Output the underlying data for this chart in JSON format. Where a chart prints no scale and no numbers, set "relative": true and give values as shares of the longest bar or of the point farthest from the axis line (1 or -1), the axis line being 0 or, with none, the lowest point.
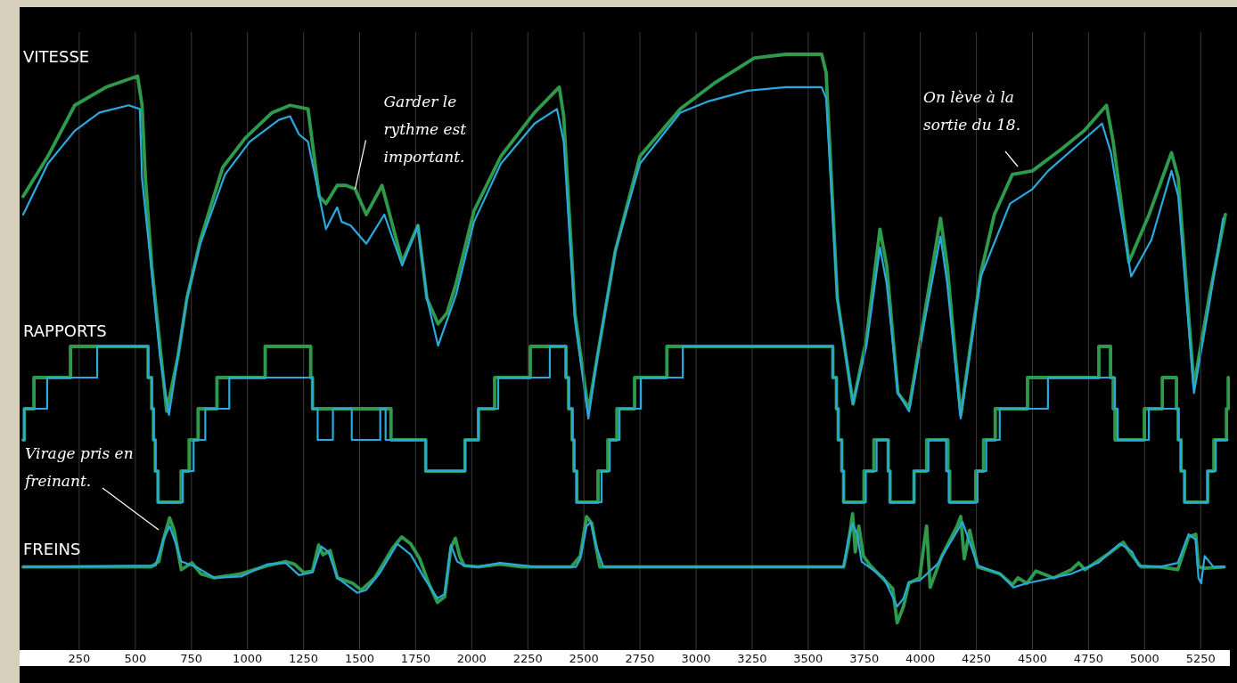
{
  "chart_data": [
    {
      "type": "line",
      "title": "VITESSE",
      "relative": true,
      "xlim": [
        0,
        5400
      ],
      "xticks": [
        250,
        500,
        750,
        1000,
        1250,
        1500,
        1750,
        2000,
        2250,
        2500,
        2750,
        3000,
        3250,
        3500,
        3750,
        4000,
        4250,
        4500,
        4750,
        5000,
        5250
      ],
      "grid": "x",
      "tick_labels": false,
      "annotations": [
        {
          "text": "Garder le rythme est important.",
          "x": 1480,
          "y": 0.63
        },
        "On lève à la sortie du 18."
      ],
      "series": [
        {
          "color": "#2e9a4c",
          "x": [
            0,
            110,
            230,
            370,
            510,
            530,
            545,
            573,
            640,
            690,
            730,
            790,
            890,
            990,
            1110,
            1190,
            1270,
            1320,
            1350,
            1400,
            1440,
            1480,
            1530,
            1600,
            1630,
            1690,
            1760,
            1800,
            1850,
            1890,
            1930,
            2010,
            2130,
            2280,
            2390,
            2410,
            2460,
            2520,
            2560,
            2640,
            2750,
            2930,
            3080,
            3260,
            3400,
            3560,
            3580,
            3630,
            3700,
            3760,
            3820,
            3850,
            3900,
            3950,
            4020,
            4090,
            4120,
            4180,
            4270,
            4330,
            4410,
            4500,
            4630,
            4730,
            4830,
            4860,
            4930,
            5020,
            5120,
            5150,
            5220,
            5290,
            5360
          ],
          "values": [
            0.61,
            0.72,
            0.86,
            0.91,
            0.94,
            0.86,
            0.66,
            0.42,
            0.02,
            0.17,
            0.33,
            0.49,
            0.69,
            0.77,
            0.84,
            0.86,
            0.85,
            0.61,
            0.59,
            0.64,
            0.64,
            0.63,
            0.56,
            0.64,
            0.57,
            0.43,
            0.53,
            0.33,
            0.26,
            0.29,
            0.37,
            0.57,
            0.72,
            0.84,
            0.91,
            0.83,
            0.29,
            0.02,
            0.17,
            0.46,
            0.72,
            0.85,
            0.92,
            0.99,
            1.0,
            1.0,
            0.95,
            0.33,
            0.04,
            0.22,
            0.52,
            0.42,
            0.07,
            0.03,
            0.29,
            0.55,
            0.42,
            0.01,
            0.4,
            0.56,
            0.67,
            0.68,
            0.74,
            0.79,
            0.86,
            0.76,
            0.43,
            0.56,
            0.73,
            0.66,
            0.09,
            0.34,
            0.56
          ]
        },
        {
          "color": "#2aa9dc",
          "x": [
            0,
            110,
            230,
            340,
            470,
            520,
            530,
            570,
            610,
            650,
            690,
            730,
            790,
            900,
            1010,
            1140,
            1190,
            1230,
            1270,
            1350,
            1400,
            1420,
            1460,
            1530,
            1610,
            1690,
            1760,
            1800,
            1850,
            1890,
            1930,
            2010,
            2130,
            2280,
            2380,
            2410,
            2460,
            2520,
            2560,
            2640,
            2750,
            2930,
            3050,
            3230,
            3400,
            3560,
            3580,
            3630,
            3700,
            3760,
            3820,
            3850,
            3900,
            3950,
            4020,
            4090,
            4120,
            4180,
            4270,
            4400,
            4500,
            4570,
            4810,
            4850,
            4940,
            5030,
            5120,
            5150,
            5220,
            5290,
            5350
          ],
          "values": [
            0.56,
            0.7,
            0.79,
            0.84,
            0.86,
            0.85,
            0.66,
            0.42,
            0.17,
            0.01,
            0.17,
            0.33,
            0.48,
            0.67,
            0.76,
            0.82,
            0.83,
            0.78,
            0.76,
            0.52,
            0.58,
            0.54,
            0.53,
            0.48,
            0.56,
            0.42,
            0.53,
            0.33,
            0.2,
            0.27,
            0.34,
            0.54,
            0.7,
            0.81,
            0.85,
            0.76,
            0.27,
            0.0,
            0.17,
            0.46,
            0.7,
            0.84,
            0.87,
            0.9,
            0.91,
            0.91,
            0.88,
            0.33,
            0.04,
            0.2,
            0.47,
            0.37,
            0.07,
            0.02,
            0.27,
            0.5,
            0.37,
            0.0,
            0.39,
            0.59,
            0.63,
            0.68,
            0.81,
            0.73,
            0.39,
            0.49,
            0.68,
            0.61,
            0.07,
            0.32,
            0.55
          ]
        }
      ]
    },
    {
      "type": "step",
      "title": "RAPPORTS",
      "relative": true,
      "xlim": [
        0,
        5400
      ],
      "xticks": [
        250,
        500,
        750,
        1000,
        1250,
        1500,
        1750,
        2000,
        2250,
        2500,
        2750,
        3000,
        3250,
        3500,
        3750,
        4000,
        4250,
        4500,
        4750,
        5000,
        5250
      ],
      "grid": "x",
      "tick_labels": false,
      "series": [
        {
          "color": "#2e9a4c",
          "x": [
            0,
            5,
            48,
            211,
            557,
            573,
            581,
            589,
            601,
            704,
            740,
            780,
            864,
            1079,
            1282,
            1290,
            1640,
            1795,
            1970,
            2030,
            2102,
            2261,
            2420,
            2432,
            2448,
            2456,
            2468,
            2563,
            2607,
            2647,
            2726,
            2870,
            3610,
            3626,
            3634,
            3650,
            3658,
            3749,
            3793,
            3857,
            3865,
            3972,
            4028,
            4123,
            4131,
            4247,
            4282,
            4334,
            4478,
            4796,
            4848,
            4860,
            4868,
            4999,
            5079,
            5142,
            5150,
            5162,
            5178,
            5281,
            5309,
            5365,
            5373
          ],
          "values": [
            0.4,
            0.6,
            0.8,
            1.0,
            0.8,
            0.6,
            0.4,
            0.2,
            0.0,
            0.2,
            0.4,
            0.6,
            0.8,
            1.0,
            0.8,
            0.6,
            0.4,
            0.2,
            0.4,
            0.6,
            0.8,
            1.0,
            0.8,
            0.6,
            0.4,
            0.2,
            0.0,
            0.2,
            0.4,
            0.6,
            0.8,
            1.0,
            0.8,
            0.6,
            0.4,
            0.2,
            0.0,
            0.2,
            0.4,
            0.2,
            0.0,
            0.2,
            0.4,
            0.2,
            0.0,
            0.2,
            0.4,
            0.6,
            0.8,
            1.0,
            0.8,
            0.6,
            0.4,
            0.6,
            0.8,
            0.6,
            0.4,
            0.2,
            0.0,
            0.2,
            0.4,
            0.6,
            0.8
          ]
        },
        {
          "color": "#2aa9dc",
          "x": [
            0,
            5,
            107,
            330,
            557,
            573,
            581,
            589,
            601,
            712,
            760,
            812,
            919,
            1290,
            1313,
            1381,
            1465,
            1592,
            1616,
            1795,
            1970,
            2030,
            2118,
            2348,
            2420,
            2432,
            2448,
            2456,
            2468,
            2579,
            2615,
            2659,
            2754,
            2941,
            3610,
            3626,
            3634,
            3650,
            3658,
            3757,
            3805,
            3857,
            3865,
            3972,
            4036,
            4115,
            4127,
            4255,
            4294,
            4354,
            4569,
            4868,
            4880,
            5019,
            5150,
            5162,
            5178,
            5281,
            5317,
            5370
          ],
          "values": [
            0.4,
            0.6,
            0.8,
            1.0,
            0.8,
            0.6,
            0.4,
            0.2,
            0.0,
            0.2,
            0.4,
            0.6,
            0.8,
            0.6,
            0.4,
            0.6,
            0.4,
            0.6,
            0.4,
            0.2,
            0.4,
            0.6,
            0.8,
            1.0,
            0.8,
            0.6,
            0.4,
            0.2,
            0.0,
            0.2,
            0.4,
            0.6,
            0.8,
            1.0,
            0.8,
            0.6,
            0.4,
            0.2,
            0.0,
            0.2,
            0.4,
            0.2,
            0.0,
            0.2,
            0.4,
            0.2,
            0.0,
            0.2,
            0.4,
            0.6,
            0.8,
            0.6,
            0.4,
            0.6,
            0.4,
            0.2,
            0.0,
            0.2,
            0.4,
            0.4
          ]
        }
      ]
    },
    {
      "type": "line",
      "title": "FREINS",
      "relative": true,
      "xlim": [
        0,
        5400
      ],
      "xticks": [
        250,
        500,
        750,
        1000,
        1250,
        1500,
        1750,
        2000,
        2250,
        2500,
        2750,
        3000,
        3250,
        3500,
        3750,
        4000,
        4250,
        4500,
        4750,
        5000,
        5250
      ],
      "grid": "x",
      "annotations": [
        "Virage pris en freinant."
      ],
      "series": [
        {
          "color": "#2e9a4c",
          "x": [
            0,
            570,
            605,
            625,
            653,
            673,
            693,
            705,
            752,
            792,
            852,
            971,
            1090,
            1170,
            1210,
            1250,
            1290,
            1317,
            1337,
            1369,
            1401,
            1469,
            1508,
            1568,
            1648,
            1688,
            1728,
            1768,
            1808,
            1847,
            1879,
            1907,
            1927,
            1946,
            1966,
            2026,
            2126,
            2225,
            2444,
            2484,
            2512,
            2535,
            2571,
            2603,
            3658,
            3678,
            3698,
            3710,
            3726,
            3746,
            3777,
            3877,
            3897,
            3925,
            3949,
            3997,
            4016,
            4028,
            4044,
            4096,
            4164,
            4180,
            4196,
            4220,
            4256,
            4355,
            4411,
            4435,
            4475,
            4515,
            4594,
            4674,
            4706,
            4734,
            4833,
            4905,
            4933,
            4984,
            5068,
            5148,
            5196,
            5228,
            5240,
            5268,
            5355
          ],
          "values": [
            0.61,
            0.61,
            0.65,
            0.81,
            0.97,
            0.88,
            0.7,
            0.59,
            0.64,
            0.56,
            0.53,
            0.56,
            0.62,
            0.65,
            0.63,
            0.57,
            0.58,
            0.77,
            0.7,
            0.73,
            0.53,
            0.49,
            0.44,
            0.53,
            0.75,
            0.83,
            0.78,
            0.67,
            0.49,
            0.35,
            0.39,
            0.75,
            0.82,
            0.69,
            0.62,
            0.61,
            0.63,
            0.61,
            0.61,
            0.69,
            0.98,
            0.93,
            0.61,
            0.61,
            0.61,
            0.77,
            1.0,
            0.72,
            0.91,
            0.69,
            0.62,
            0.45,
            0.2,
            0.32,
            0.49,
            0.53,
            0.77,
            0.91,
            0.46,
            0.69,
            0.91,
            0.98,
            0.67,
            0.88,
            0.61,
            0.56,
            0.48,
            0.53,
            0.49,
            0.58,
            0.53,
            0.59,
            0.64,
            0.59,
            0.7,
            0.79,
            0.72,
            0.61,
            0.61,
            0.59,
            0.83,
            0.85,
            0.61,
            0.6,
            0.61
          ]
        },
        {
          "color": "#2aa9dc",
          "x": [
            0,
            590,
            625,
            653,
            681,
            705,
            772,
            852,
            971,
            1090,
            1170,
            1230,
            1290,
            1329,
            1361,
            1401,
            1489,
            1528,
            1588,
            1668,
            1728,
            1788,
            1847,
            1879,
            1907,
            1935,
            1966,
            2026,
            2126,
            2285,
            2464,
            2484,
            2512,
            2531,
            2555,
            2587,
            3658,
            3678,
            3698,
            3718,
            3738,
            3837,
            3897,
            3925,
            3949,
            3997,
            4076,
            4156,
            4188,
            4216,
            4256,
            4355,
            4415,
            4475,
            4674,
            4793,
            4889,
            4921,
            4945,
            4973,
            5068,
            5148,
            5196,
            5228,
            5240,
            5252,
            5268,
            5307,
            5355
          ],
          "values": [
            0.61,
            0.62,
            0.81,
            0.91,
            0.78,
            0.65,
            0.61,
            0.53,
            0.54,
            0.63,
            0.64,
            0.55,
            0.57,
            0.76,
            0.72,
            0.53,
            0.42,
            0.44,
            0.56,
            0.78,
            0.7,
            0.53,
            0.38,
            0.41,
            0.77,
            0.65,
            0.62,
            0.61,
            0.64,
            0.61,
            0.61,
            0.67,
            0.91,
            0.94,
            0.76,
            0.61,
            0.61,
            0.81,
            0.93,
            0.85,
            0.65,
            0.53,
            0.32,
            0.38,
            0.5,
            0.51,
            0.63,
            0.85,
            0.94,
            0.81,
            0.62,
            0.56,
            0.46,
            0.49,
            0.56,
            0.64,
            0.78,
            0.75,
            0.72,
            0.62,
            0.61,
            0.64,
            0.85,
            0.81,
            0.53,
            0.49,
            0.69,
            0.61,
            0.61
          ]
        }
      ]
    }
  ]
}
